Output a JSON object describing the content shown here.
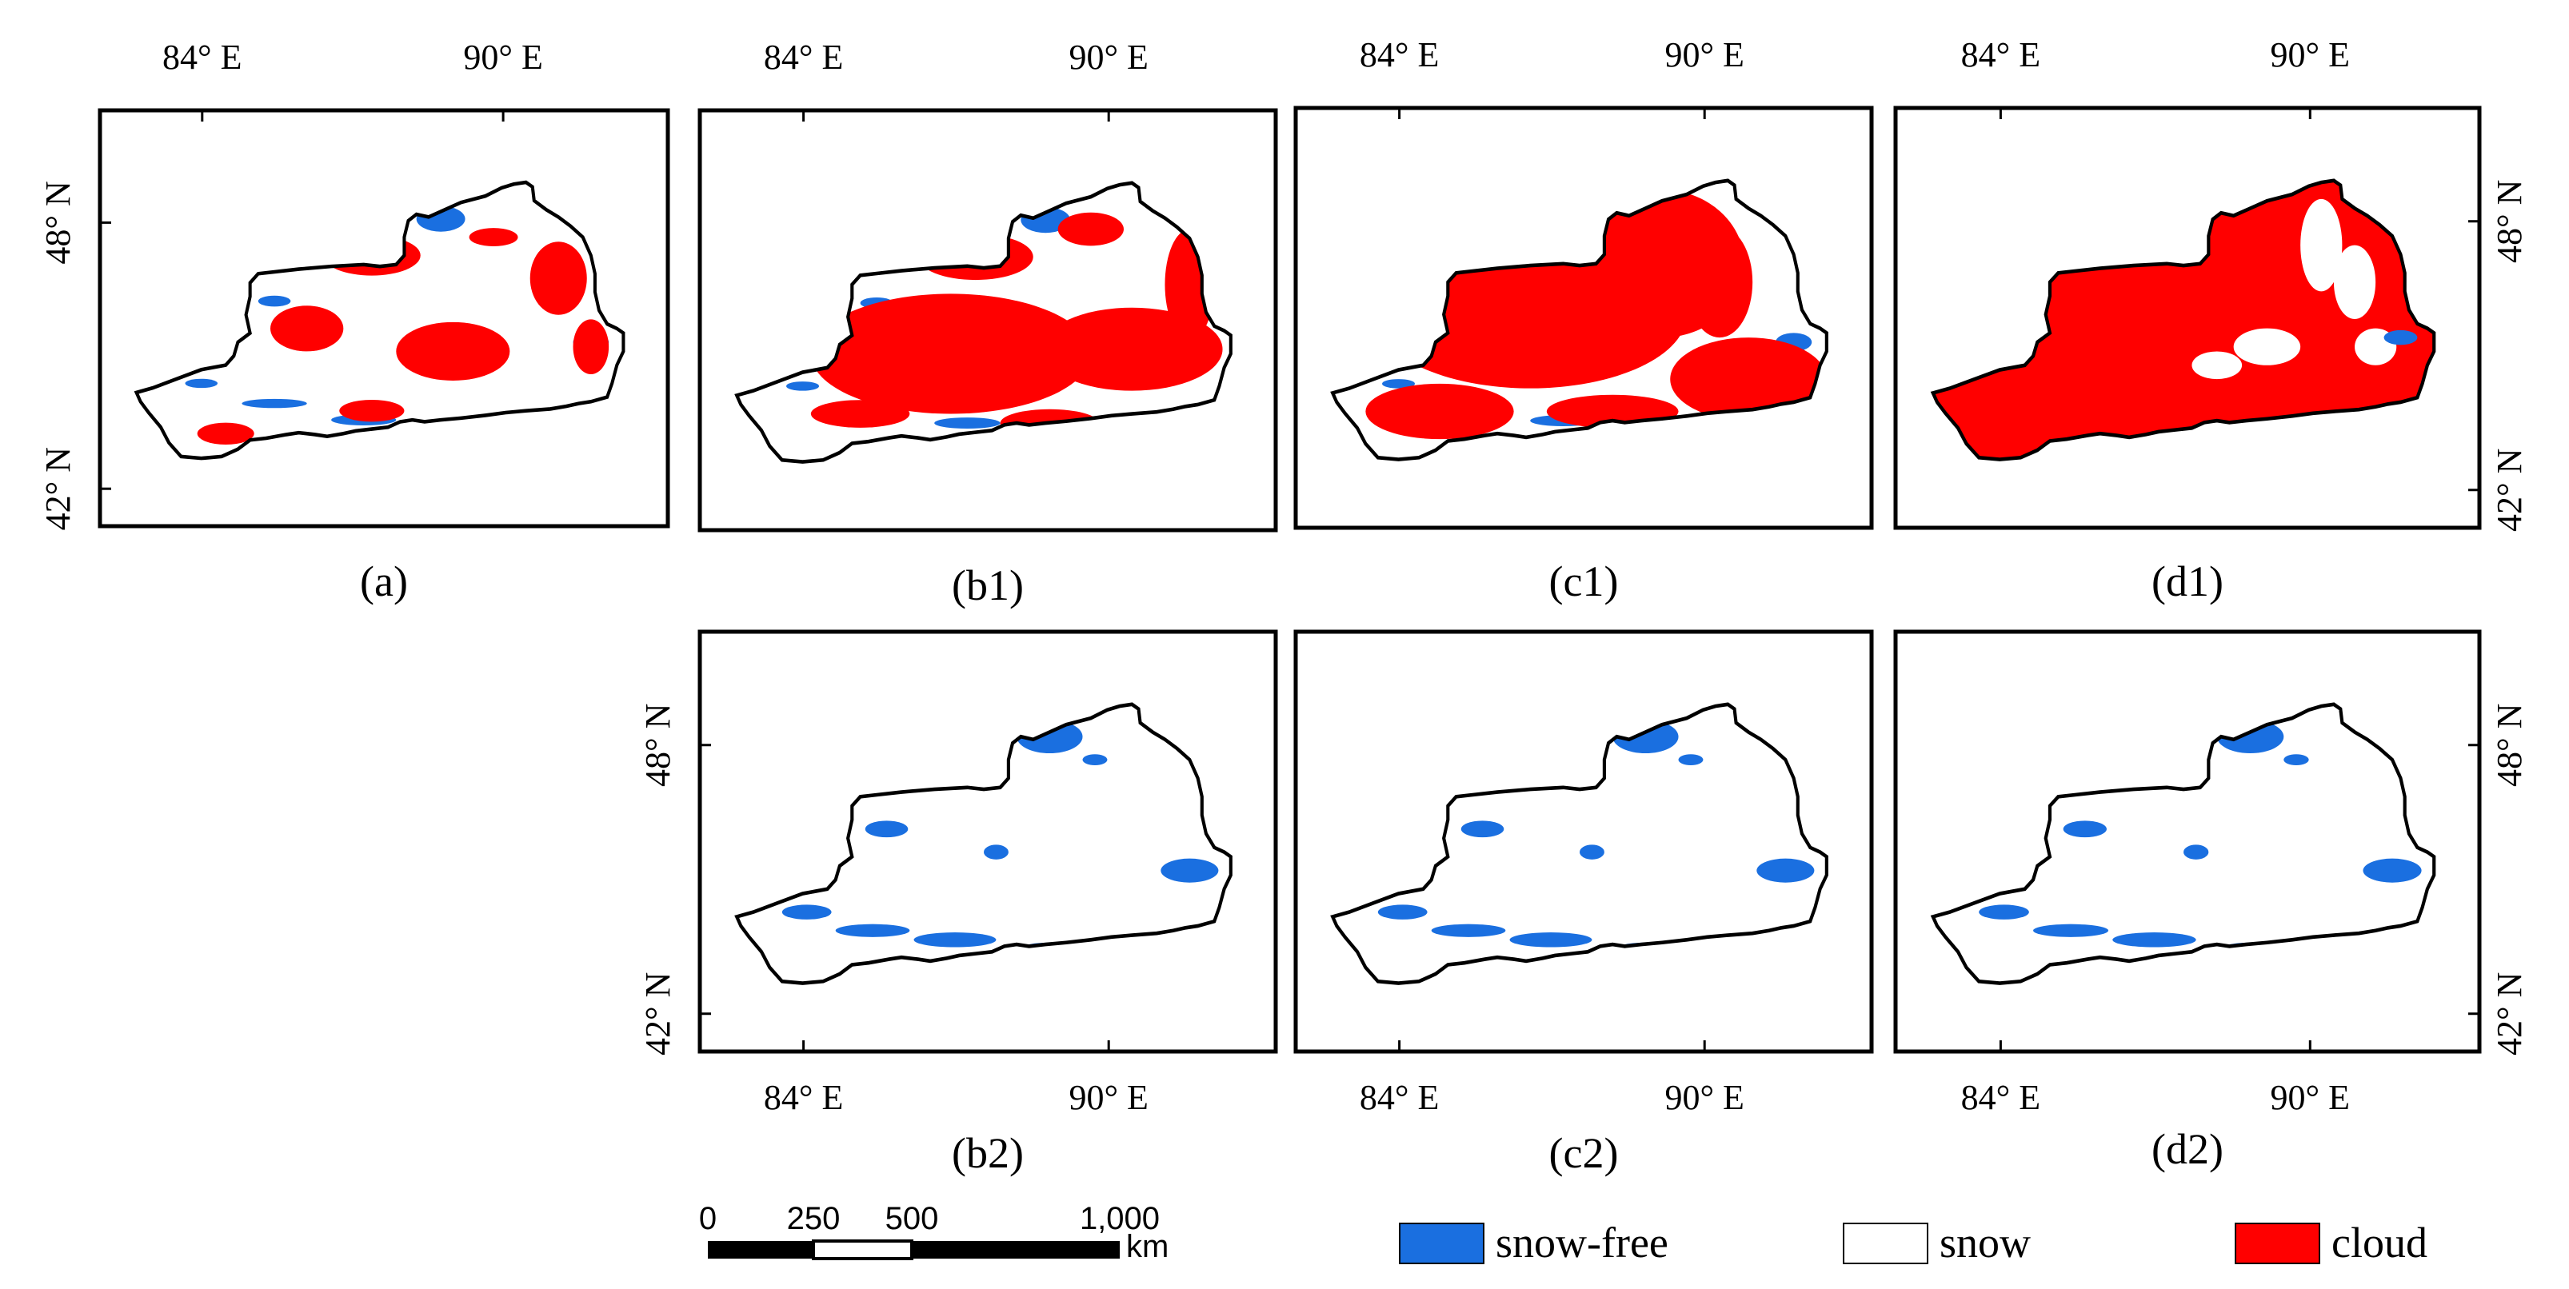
{
  "colors": {
    "snow_free": "#1a6fe0",
    "snow": "#ffffff",
    "cloud": "#ff0000",
    "outline": "#000000"
  },
  "labels": {
    "lon_84": "84° E",
    "lon_90": "90° E",
    "lat_48": "48° N",
    "lat_42": "42° N"
  },
  "panels": [
    {
      "id": "a",
      "caption": "(a)",
      "cloud_level": "medium"
    },
    {
      "id": "b1",
      "caption": "(b1)",
      "cloud_level": "high"
    },
    {
      "id": "c1",
      "caption": "(c1)",
      "cloud_level": "very-high"
    },
    {
      "id": "d1",
      "caption": "(d1)",
      "cloud_level": "extreme"
    },
    {
      "id": "b2",
      "caption": "(b2)",
      "cloud_level": "none"
    },
    {
      "id": "c2",
      "caption": "(c2)",
      "cloud_level": "none"
    },
    {
      "id": "d2",
      "caption": "(d2)",
      "cloud_level": "none"
    }
  ],
  "scale_bar": {
    "ticks": [
      "0",
      "250",
      "500",
      "1,000"
    ],
    "unit": "km"
  },
  "legend": [
    {
      "key": "snow_free",
      "label": "snow-free"
    },
    {
      "key": "snow",
      "label": "snow"
    },
    {
      "key": "cloud",
      "label": "cloud"
    }
  ]
}
